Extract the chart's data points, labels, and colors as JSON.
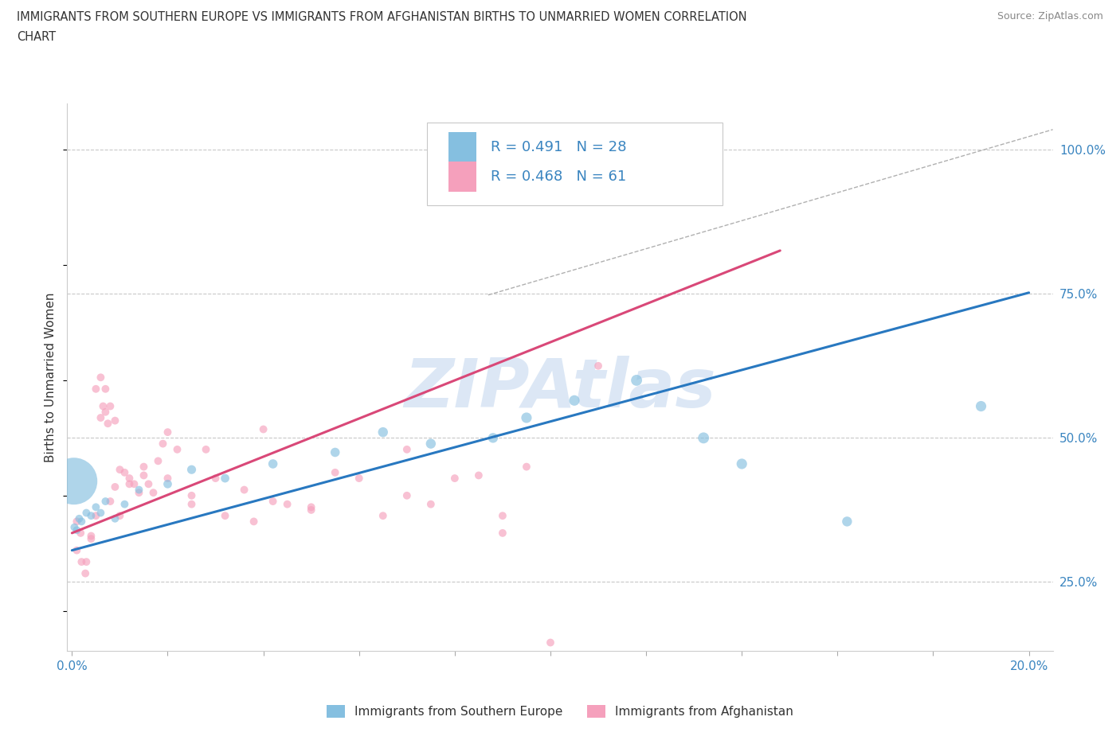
{
  "title_line1": "IMMIGRANTS FROM SOUTHERN EUROPE VS IMMIGRANTS FROM AFGHANISTAN BIRTHS TO UNMARRIED WOMEN CORRELATION",
  "title_line2": "CHART",
  "source": "Source: ZipAtlas.com",
  "ylabel": "Births to Unmarried Women",
  "xlim": [
    -0.001,
    0.205
  ],
  "ylim": [
    0.13,
    1.08
  ],
  "xtick_positions": [
    0.0,
    0.02,
    0.04,
    0.06,
    0.08,
    0.1,
    0.12,
    0.14,
    0.16,
    0.18,
    0.2
  ],
  "xticklabels_show": {
    "0.0": "0.0%",
    "0.20": "20.0%"
  },
  "ytick_positions": [
    0.25,
    0.5,
    0.75,
    1.0
  ],
  "yticklabels": [
    "25.0%",
    "50.0%",
    "75.0%",
    "100.0%"
  ],
  "blue_color": "#85bfe0",
  "pink_color": "#f5a0bc",
  "blue_trend_color": "#2878c0",
  "pink_trend_color": "#d94878",
  "tick_label_color": "#3a85c0",
  "grid_color": "#c8c8c8",
  "watermark": "ZIPAtlas",
  "watermark_color": "#c0d5ee",
  "legend_text_color": "#3a85c0",
  "legend_R_blue": "R = 0.491",
  "legend_N_blue": "N = 28",
  "legend_R_pink": "R = 0.468",
  "legend_N_pink": "N = 61",
  "label_blue": "Immigrants from Southern Europe",
  "label_pink": "Immigrants from Afghanistan",
  "bottom_legend_color": "#333333",
  "blue_x": [
    0.0005,
    0.001,
    0.0015,
    0.002,
    0.003,
    0.004,
    0.005,
    0.006,
    0.007,
    0.009,
    0.011,
    0.014,
    0.02,
    0.025,
    0.032,
    0.042,
    0.055,
    0.065,
    0.075,
    0.088,
    0.095,
    0.105,
    0.118,
    0.132,
    0.14,
    0.162,
    0.19,
    0.0004
  ],
  "blue_y": [
    0.345,
    0.34,
    0.36,
    0.355,
    0.37,
    0.365,
    0.38,
    0.37,
    0.39,
    0.36,
    0.385,
    0.41,
    0.42,
    0.445,
    0.43,
    0.455,
    0.475,
    0.51,
    0.49,
    0.5,
    0.535,
    0.565,
    0.6,
    0.5,
    0.455,
    0.355,
    0.555,
    0.425
  ],
  "blue_sizes": [
    50,
    50,
    50,
    50,
    50,
    50,
    50,
    50,
    50,
    50,
    50,
    50,
    60,
    65,
    60,
    70,
    70,
    80,
    80,
    80,
    90,
    90,
    100,
    100,
    90,
    80,
    90,
    1800
  ],
  "pink_x": [
    0.001,
    0.0018,
    0.003,
    0.004,
    0.005,
    0.006,
    0.0065,
    0.007,
    0.0075,
    0.008,
    0.009,
    0.01,
    0.011,
    0.012,
    0.013,
    0.014,
    0.015,
    0.016,
    0.017,
    0.018,
    0.019,
    0.02,
    0.022,
    0.025,
    0.028,
    0.032,
    0.036,
    0.038,
    0.042,
    0.045,
    0.05,
    0.055,
    0.065,
    0.07,
    0.075,
    0.08,
    0.085,
    0.09,
    0.095,
    0.11,
    0.001,
    0.002,
    0.0028,
    0.004,
    0.005,
    0.006,
    0.007,
    0.008,
    0.009,
    0.01,
    0.012,
    0.015,
    0.02,
    0.025,
    0.03,
    0.04,
    0.05,
    0.06,
    0.07,
    0.09,
    0.1
  ],
  "pink_y": [
    0.355,
    0.335,
    0.285,
    0.325,
    0.365,
    0.535,
    0.555,
    0.545,
    0.525,
    0.39,
    0.415,
    0.445,
    0.44,
    0.43,
    0.42,
    0.405,
    0.435,
    0.42,
    0.405,
    0.46,
    0.49,
    0.51,
    0.48,
    0.4,
    0.48,
    0.365,
    0.41,
    0.355,
    0.39,
    0.385,
    0.375,
    0.44,
    0.365,
    0.4,
    0.385,
    0.43,
    0.435,
    0.335,
    0.45,
    0.625,
    0.305,
    0.285,
    0.265,
    0.33,
    0.585,
    0.605,
    0.585,
    0.555,
    0.53,
    0.365,
    0.42,
    0.45,
    0.43,
    0.385,
    0.43,
    0.515,
    0.38,
    0.43,
    0.48,
    0.365,
    0.145
  ],
  "pink_sizes": [
    50,
    50,
    50,
    50,
    50,
    50,
    50,
    50,
    50,
    50,
    50,
    50,
    50,
    50,
    50,
    50,
    50,
    50,
    50,
    50,
    50,
    50,
    50,
    50,
    50,
    50,
    50,
    50,
    50,
    50,
    50,
    50,
    50,
    50,
    50,
    50,
    50,
    50,
    50,
    50,
    50,
    50,
    50,
    50,
    50,
    50,
    50,
    50,
    50,
    50,
    50,
    50,
    50,
    50,
    50,
    50,
    50,
    50,
    50,
    50,
    50
  ],
  "blue_trend_x": [
    0.0,
    0.2
  ],
  "blue_trend_y": [
    0.305,
    0.752
  ],
  "pink_trend_x": [
    0.0,
    0.148
  ],
  "pink_trend_y": [
    0.335,
    0.825
  ],
  "ref_line_x": [
    0.087,
    0.205
  ],
  "ref_line_y": [
    0.748,
    1.035
  ]
}
